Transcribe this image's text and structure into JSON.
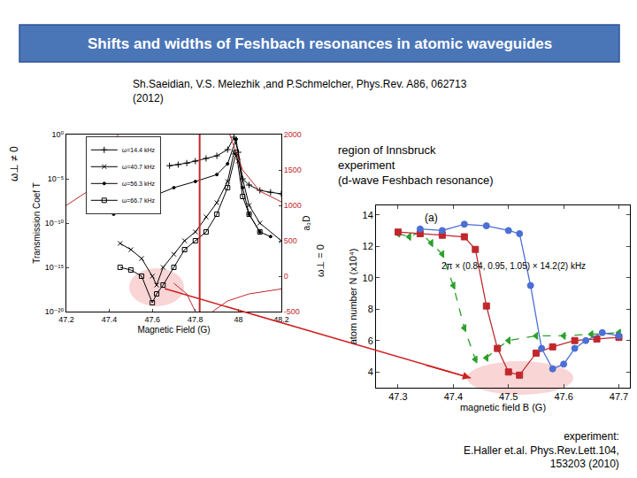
{
  "title": "Shifts and widths of Feshbach resonances in atomic waveguides",
  "citation": [
    "Sh.Saeidian, V.S. Melezhik ,and P.Schmelcher, Phys.Rev. A86, 062713",
    "(2012)"
  ],
  "region_note": [
    "region of Innsbruck",
    "experiment",
    "(d-wave Feshbach resonance)"
  ],
  "experiment_note": [
    "experiment:",
    "E.Haller et.al. Phys.Rev.Lett.104,",
    "153203 (2010)"
  ],
  "chart_data": [
    {
      "type": "line",
      "x_label": "Magnetic Field (G)",
      "y_label": "Transmission Coef T",
      "y2_label": "a₃D",
      "annotations": [
        "ω⊥ ≠ 0",
        "ω⊥ = 0"
      ],
      "log": "y",
      "legend": "upper left",
      "xlim": [
        47.2,
        48.2
      ],
      "xticks": [
        47.2,
        47.4,
        47.6,
        47.8,
        48,
        48.2
      ],
      "ylim": [
        1e-20,
        1
      ],
      "yticks": [
        {
          "value": 1e-20,
          "label": "10⁻²⁰"
        },
        {
          "value": 1e-15,
          "label": "10⁻¹⁵"
        },
        {
          "value": 1e-10,
          "label": "10⁻¹⁰"
        },
        {
          "value": 1e-05,
          "label": "10⁻⁵"
        },
        {
          "value": 1,
          "label": "10⁰"
        }
      ],
      "y2lim": [
        -500,
        2000
      ],
      "y2ticks": [
        -500,
        0,
        500,
        1000,
        1500,
        2000
      ],
      "vertical_line": {
        "x": 47.82,
        "color": "#c0282d"
      },
      "series": [
        {
          "name": "ω=14.4 kHz",
          "color": "#000000",
          "marker": "plus",
          "line_style": "solid",
          "x": [
            47.68,
            47.72,
            47.76,
            47.8,
            47.85,
            47.9,
            47.95,
            47.98,
            48.0,
            48.02,
            48.05,
            48.1,
            48.15,
            48.2
          ],
          "values": [
            0.0003,
            0.0004,
            0.0006,
            0.001,
            0.002,
            0.004,
            0.02,
            0.5,
            0.01,
            1e-05,
            2e-06,
            5e-07,
            3e-07,
            2e-07
          ]
        },
        {
          "name": "ω=40.7 kHz",
          "color": "#000000",
          "marker": "cross",
          "line_style": "solid",
          "x": [
            47.45,
            47.5,
            47.55,
            47.6,
            47.62,
            47.65,
            47.7,
            47.75,
            47.8,
            47.85,
            47.9,
            47.95,
            47.98,
            48.0,
            48.05,
            48.1,
            48.2
          ],
          "values": [
            5e-13,
            1e-13,
            1e-14,
            1e-16,
            1e-17,
            1e-15,
            3e-14,
            1e-12,
            1e-11,
            5e-10,
            2e-08,
            5e-06,
            0.01,
            0.001,
            1e-08,
            1e-10,
            1e-12
          ]
        },
        {
          "name": "ω=56.3 kHz",
          "color": "#000000",
          "marker": "dot",
          "line_style": "solid",
          "x": [
            47.42,
            47.5,
            47.6,
            47.7,
            47.8,
            47.9,
            47.95,
            47.99,
            48.02,
            48.05,
            48.1,
            48.15
          ],
          "values": [
            1e-09,
            8e-09,
            1e-07,
            1e-06,
            5e-06,
            3e-05,
            0.0005,
            0.3,
            1e-06,
            1e-09,
            1e-11,
            3e-12
          ]
        },
        {
          "name": "ω=66.7 kHz",
          "color": "#000000",
          "marker": "open-square",
          "line_style": "solid",
          "x": [
            47.45,
            47.5,
            47.55,
            47.6,
            47.62,
            47.65,
            47.7,
            47.75,
            47.8,
            47.85,
            47.9,
            47.95,
            47.99,
            48.02,
            48.05,
            48.1
          ],
          "values": [
            1e-15,
            5e-16,
            1e-16,
            1e-19,
            1e-18,
            1e-17,
            1e-15,
            1e-13,
            1e-12,
            1e-11,
            1e-09,
            1e-06,
            0.01,
            1e-07,
            1e-09,
            1e-11
          ]
        },
        {
          "color": "#c0282d",
          "line_style": "solid",
          "axis": "y2",
          "x": [
            47.2,
            47.3,
            47.38,
            47.44,
            null,
            47.7,
            47.76,
            47.8,
            null,
            47.96,
            48.02,
            48.1,
            48.2,
            null,
            47.88,
            47.95,
            48.05,
            48.2
          ],
          "values": [
            1000,
            1200,
            1500,
            2000,
            null,
            -100,
            -250,
            -500,
            null,
            2000,
            1500,
            1200,
            1050,
            null,
            -500,
            -350,
            -250,
            -180
          ]
        }
      ]
    },
    {
      "type": "line",
      "label": "(a)",
      "annotation": "2π × (0.84, 0.95, 1.05) × 14.2(2) kHz",
      "x_label": "magnetic field B (G)",
      "y_label": "atom number N (x10⁴)",
      "xlim": [
        47.26,
        47.72
      ],
      "xticks": [
        47.3,
        47.4,
        47.5,
        47.6,
        47.7
      ],
      "ylim": [
        3,
        14.6
      ],
      "yticks": [
        4,
        6,
        8,
        10,
        12,
        14
      ],
      "series": [
        {
          "color": "#2ca02c",
          "marker": "triangle",
          "line_style": "dashed",
          "x": [
            47.3,
            47.32,
            47.34,
            47.36,
            47.38,
            47.4,
            47.42,
            47.44,
            47.46,
            47.48,
            47.5,
            47.55,
            47.6,
            47.65,
            47.7
          ],
          "values": [
            12.8,
            12.6,
            12.9,
            12.2,
            11.5,
            9.5,
            6.8,
            4.8,
            4.9,
            5.5,
            6.0,
            6.3,
            6.3,
            6.4,
            6.5
          ]
        },
        {
          "color": "#c0282d",
          "marker": "square",
          "line_style": "solid",
          "x": [
            47.3,
            47.34,
            47.38,
            47.42,
            47.44,
            47.46,
            47.48,
            47.5,
            47.52,
            47.55,
            47.58,
            47.62,
            47.66,
            47.7
          ],
          "values": [
            12.9,
            12.8,
            12.7,
            12.6,
            11.8,
            8.2,
            5.5,
            4.0,
            3.8,
            5.2,
            5.6,
            6.0,
            6.1,
            6.2
          ]
        },
        {
          "color": "#4b6fd4",
          "marker": "circle",
          "line_style": "solid",
          "x": [
            47.34,
            47.38,
            47.42,
            47.46,
            47.5,
            47.52,
            47.54,
            47.56,
            47.58,
            47.6,
            47.62,
            47.64,
            47.67,
            47.7
          ],
          "values": [
            13.1,
            13.0,
            13.4,
            13.3,
            13.0,
            12.8,
            9.5,
            5.5,
            4.2,
            4.5,
            5.5,
            6.0,
            6.5,
            6.3
          ]
        }
      ]
    }
  ]
}
